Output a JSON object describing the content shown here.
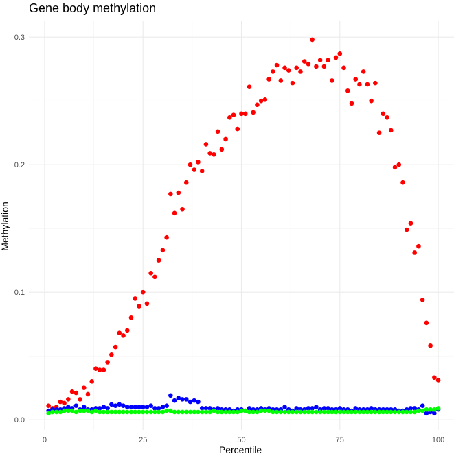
{
  "chart_data": {
    "type": "scatter",
    "title": "Gene body methylation",
    "xlabel": "Percentile",
    "ylabel": "Methylation",
    "xlim": [
      -4.0,
      104.0
    ],
    "ylim": [
      -0.008,
      0.313
    ],
    "x_ticks": [
      0,
      25,
      50,
      75,
      100
    ],
    "x_tick_labels": [
      "0",
      "25",
      "50",
      "75",
      "100"
    ],
    "y_ticks": [
      0.0,
      0.1,
      0.2,
      0.3
    ],
    "y_tick_labels": [
      "0.0",
      "0.1",
      "0.2",
      "0.3"
    ],
    "grid": true,
    "legend": "none",
    "x": [
      1,
      2,
      3,
      4,
      5,
      6,
      7,
      8,
      9,
      10,
      11,
      12,
      13,
      14,
      15,
      16,
      17,
      18,
      19,
      20,
      21,
      22,
      23,
      24,
      25,
      26,
      27,
      28,
      29,
      30,
      31,
      32,
      33,
      34,
      35,
      36,
      37,
      38,
      39,
      40,
      41,
      42,
      43,
      44,
      45,
      46,
      47,
      48,
      49,
      50,
      51,
      52,
      53,
      54,
      55,
      56,
      57,
      58,
      59,
      60,
      61,
      62,
      63,
      64,
      65,
      66,
      67,
      68,
      69,
      70,
      71,
      72,
      73,
      74,
      75,
      76,
      77,
      78,
      79,
      80,
      81,
      82,
      83,
      84,
      85,
      86,
      87,
      88,
      89,
      90,
      91,
      92,
      93,
      94,
      95,
      96,
      97,
      98,
      99,
      100
    ],
    "series": [
      {
        "color": "#ff0000",
        "values": [
          0.011,
          0.009,
          0.01,
          0.014,
          0.013,
          0.016,
          0.022,
          0.021,
          0.016,
          0.025,
          0.02,
          0.03,
          0.04,
          0.039,
          0.039,
          0.045,
          0.051,
          0.057,
          0.068,
          0.066,
          0.07,
          0.08,
          0.095,
          0.089,
          0.1,
          0.091,
          0.115,
          0.112,
          0.125,
          0.133,
          0.143,
          0.177,
          0.162,
          0.178,
          0.165,
          0.186,
          0.2,
          0.196,
          0.202,
          0.195,
          0.216,
          0.209,
          0.208,
          0.226,
          0.212,
          0.22,
          0.237,
          0.239,
          0.228,
          0.24,
          0.24,
          0.261,
          0.241,
          0.247,
          0.25,
          0.251,
          0.267,
          0.273,
          0.278,
          0.266,
          0.276,
          0.274,
          0.264,
          0.276,
          0.273,
          0.281,
          0.279,
          0.298,
          0.277,
          0.282,
          0.277,
          0.282,
          0.266,
          0.284,
          0.287,
          0.276,
          0.258,
          0.248,
          0.267,
          0.263,
          0.273,
          0.263,
          0.25,
          0.264,
          0.225,
          0.24,
          0.237,
          0.227,
          0.198,
          0.2,
          0.186,
          0.149,
          0.154,
          0.131,
          0.136,
          0.094,
          0.076,
          0.058,
          0.033,
          0.031
        ]
      },
      {
        "color": "#0000ff",
        "values": [
          0.007,
          0.008,
          0.008,
          0.008,
          0.009,
          0.01,
          0.009,
          0.011,
          0.008,
          0.01,
          0.008,
          0.008,
          0.009,
          0.009,
          0.01,
          0.009,
          0.012,
          0.011,
          0.012,
          0.011,
          0.01,
          0.01,
          0.01,
          0.01,
          0.01,
          0.01,
          0.011,
          0.009,
          0.009,
          0.01,
          0.011,
          0.019,
          0.015,
          0.017,
          0.016,
          0.016,
          0.014,
          0.015,
          0.014,
          0.009,
          0.009,
          0.009,
          0.008,
          0.009,
          0.008,
          0.008,
          0.008,
          0.007,
          0.008,
          0.008,
          0.007,
          0.009,
          0.008,
          0.008,
          0.009,
          0.008,
          0.009,
          0.008,
          0.008,
          0.008,
          0.01,
          0.008,
          0.007,
          0.009,
          0.008,
          0.008,
          0.009,
          0.009,
          0.01,
          0.008,
          0.009,
          0.009,
          0.008,
          0.008,
          0.009,
          0.008,
          0.008,
          0.007,
          0.009,
          0.008,
          0.008,
          0.008,
          0.009,
          0.008,
          0.008,
          0.008,
          0.008,
          0.008,
          0.008,
          0.007,
          0.007,
          0.008,
          0.009,
          0.009,
          0.008,
          0.011,
          0.005,
          0.006,
          0.005,
          0.008
        ]
      },
      {
        "color": "#00ff00",
        "values": [
          0.005,
          0.006,
          0.006,
          0.006,
          0.007,
          0.007,
          0.007,
          0.006,
          0.007,
          0.007,
          0.007,
          0.006,
          0.007,
          0.006,
          0.006,
          0.006,
          0.006,
          0.006,
          0.006,
          0.006,
          0.006,
          0.006,
          0.006,
          0.006,
          0.006,
          0.006,
          0.006,
          0.006,
          0.006,
          0.006,
          0.007,
          0.007,
          0.006,
          0.006,
          0.006,
          0.006,
          0.006,
          0.006,
          0.006,
          0.006,
          0.006,
          0.006,
          0.007,
          0.006,
          0.006,
          0.006,
          0.006,
          0.006,
          0.006,
          0.007,
          0.007,
          0.006,
          0.006,
          0.006,
          0.007,
          0.007,
          0.007,
          0.006,
          0.006,
          0.006,
          0.006,
          0.006,
          0.006,
          0.006,
          0.006,
          0.006,
          0.006,
          0.006,
          0.006,
          0.006,
          0.006,
          0.006,
          0.006,
          0.006,
          0.006,
          0.006,
          0.006,
          0.006,
          0.006,
          0.006,
          0.006,
          0.006,
          0.006,
          0.006,
          0.006,
          0.006,
          0.006,
          0.006,
          0.006,
          0.006,
          0.006,
          0.006,
          0.006,
          0.006,
          0.007,
          0.007,
          0.008,
          0.008,
          0.008,
          0.009
        ]
      }
    ]
  }
}
